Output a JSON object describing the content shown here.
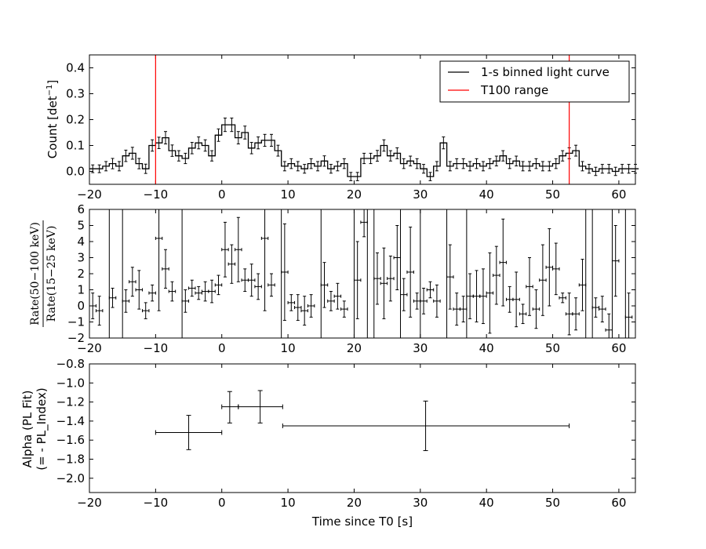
{
  "chart_data": [
    {
      "type": "line",
      "panel": "top",
      "ylabel_main": "Count [det",
      "ylabel_sup": "−1",
      "ylabel_end": "]",
      "xlim": [
        -20,
        62.5
      ],
      "ylim": [
        -0.05,
        0.45
      ],
      "xticks": [
        -20,
        -10,
        0,
        10,
        20,
        30,
        40,
        50,
        60
      ],
      "yticks": [
        0.0,
        0.1,
        0.2,
        0.3,
        0.4
      ],
      "ytick_labels": [
        "0.0",
        "0.1",
        "0.2",
        "0.3",
        "0.4"
      ],
      "legend": {
        "position": "top-right",
        "entries": [
          {
            "label": "1-s binned light curve",
            "color": "#000000"
          },
          {
            "label": "T100 range",
            "color": "#ff0000"
          }
        ]
      },
      "series": [
        {
          "name": "1-s binned light curve",
          "x_start": -20,
          "bin_width": 1,
          "values": [
            0.01,
            0.01,
            0.02,
            0.03,
            0.02,
            0.06,
            0.07,
            0.03,
            0.01,
            0.1,
            0.11,
            0.13,
            0.08,
            0.06,
            0.05,
            0.09,
            0.11,
            0.1,
            0.06,
            0.14,
            0.18,
            0.18,
            0.13,
            0.15,
            0.09,
            0.11,
            0.12,
            0.12,
            0.08,
            0.02,
            0.03,
            0.02,
            0.01,
            0.03,
            0.02,
            0.04,
            0.01,
            0.02,
            0.03,
            -0.02,
            -0.02,
            0.05,
            0.05,
            0.06,
            0.1,
            0.06,
            0.07,
            0.03,
            0.04,
            0.03,
            0.01,
            -0.02,
            0.02,
            0.11,
            0.02,
            0.03,
            0.03,
            0.02,
            0.03,
            0.02,
            0.03,
            0.04,
            0.06,
            0.03,
            0.04,
            0.02,
            0.02,
            0.03,
            0.02,
            0.02,
            0.03,
            0.06,
            0.07,
            0.08,
            0.02,
            0.01,
            0.0,
            0.01,
            0.01,
            0.0,
            0.01,
            0.01,
            0.01
          ],
          "errors": [
            0.015,
            0.015,
            0.018,
            0.02,
            0.018,
            0.022,
            0.023,
            0.02,
            0.018,
            0.022,
            0.022,
            0.024,
            0.022,
            0.02,
            0.02,
            0.022,
            0.023,
            0.022,
            0.02,
            0.024,
            0.026,
            0.026,
            0.024,
            0.025,
            0.022,
            0.023,
            0.023,
            0.023,
            0.021,
            0.018,
            0.019,
            0.018,
            0.017,
            0.019,
            0.018,
            0.02,
            0.017,
            0.018,
            0.019,
            0.016,
            0.016,
            0.02,
            0.02,
            0.021,
            0.022,
            0.02,
            0.021,
            0.019,
            0.019,
            0.019,
            0.017,
            0.016,
            0.018,
            0.023,
            0.018,
            0.019,
            0.019,
            0.018,
            0.019,
            0.018,
            0.019,
            0.019,
            0.02,
            0.019,
            0.019,
            0.018,
            0.018,
            0.019,
            0.018,
            0.018,
            0.019,
            0.02,
            0.021,
            0.021,
            0.018,
            0.017,
            0.016,
            0.017,
            0.017,
            0.016,
            0.017,
            0.017,
            0.017
          ]
        }
      ],
      "t100_lines": [
        -10,
        52.5
      ]
    },
    {
      "type": "scatter",
      "panel": "middle",
      "ylabel": "Rate(50−100 keV) / Rate(15−25 keV)",
      "ylabel_num": "Rate(50−100 keV)",
      "ylabel_den": "Rate(15−25 keV)",
      "xlim": [
        -20,
        62.5
      ],
      "ylim": [
        -2,
        6
      ],
      "xticks": [
        -20,
        -10,
        0,
        10,
        20,
        30,
        40,
        50,
        60
      ],
      "yticks": [
        -2,
        -1,
        0,
        1,
        2,
        3,
        4,
        5,
        6
      ],
      "ytick_labels": [
        "−2",
        "−1",
        "0",
        "1",
        "2",
        "3",
        "4",
        "5",
        "6"
      ],
      "points": [
        [
          -19.5,
          0.0,
          0.8
        ],
        [
          -18.5,
          -0.3,
          0.9
        ],
        [
          -16.5,
          0.5,
          0.6
        ],
        [
          -14.5,
          0.3,
          0.7
        ],
        [
          -13.5,
          1.5,
          0.9
        ],
        [
          -12.5,
          1.0,
          1.2
        ],
        [
          -11.5,
          -0.3,
          0.5
        ],
        [
          -10.5,
          0.8,
          0.5
        ],
        [
          -9.5,
          4.2,
          4.5
        ],
        [
          -8.5,
          2.3,
          1.2
        ],
        [
          -7.5,
          0.9,
          0.6
        ],
        [
          -5.5,
          0.3,
          0.7
        ],
        [
          -4.5,
          1.1,
          0.5
        ],
        [
          -3.5,
          0.8,
          0.4
        ],
        [
          -2.5,
          0.9,
          0.6
        ],
        [
          -1.5,
          0.9,
          0.7
        ],
        [
          -0.5,
          1.3,
          0.6
        ],
        [
          0.5,
          3.5,
          1.7
        ],
        [
          1.5,
          2.6,
          1.2
        ],
        [
          2.5,
          3.5,
          2.0
        ],
        [
          3.5,
          1.6,
          0.7
        ],
        [
          4.5,
          1.6,
          1.0
        ],
        [
          5.5,
          1.2,
          0.8
        ],
        [
          6.5,
          4.2,
          4.5
        ],
        [
          7.5,
          1.3,
          0.7
        ],
        [
          9.5,
          2.1,
          3.0
        ],
        [
          10.5,
          0.2,
          0.5
        ],
        [
          11.5,
          -0.1,
          0.8
        ],
        [
          12.5,
          -0.3,
          0.9
        ],
        [
          13.5,
          0.0,
          0.7
        ],
        [
          15.5,
          1.3,
          1.4
        ],
        [
          16.5,
          0.3,
          0.6
        ],
        [
          17.5,
          0.6,
          0.8
        ],
        [
          18.5,
          -0.2,
          0.5
        ],
        [
          20.5,
          1.6,
          2.4
        ],
        [
          21.5,
          5.2,
          0.9
        ],
        [
          23.5,
          1.7,
          1.6
        ],
        [
          24.5,
          1.4,
          2.2
        ],
        [
          25.5,
          1.7,
          1.4
        ],
        [
          26.5,
          3.0,
          2.0
        ],
        [
          27.5,
          0.7,
          1.0
        ],
        [
          28.5,
          2.1,
          2.8
        ],
        [
          29.5,
          0.3,
          0.5
        ],
        [
          30.5,
          0.3,
          0.8
        ],
        [
          31.5,
          1.0,
          0.5
        ],
        [
          32.5,
          0.3,
          1.0
        ],
        [
          34.5,
          1.8,
          2.0
        ],
        [
          35.5,
          -0.2,
          1.0
        ],
        [
          36.5,
          -0.2,
          0.8
        ],
        [
          37.5,
          0.6,
          1.4
        ],
        [
          38.5,
          0.6,
          1.6
        ],
        [
          39.5,
          0.6,
          1.7
        ],
        [
          40.5,
          0.8,
          2.5
        ],
        [
          41.5,
          1.9,
          1.8
        ],
        [
          42.5,
          2.7,
          2.7
        ],
        [
          43.5,
          0.4,
          0.8
        ],
        [
          44.5,
          0.4,
          1.7
        ],
        [
          45.5,
          -0.5,
          0.6
        ],
        [
          46.5,
          1.2,
          1.8
        ],
        [
          47.5,
          -0.2,
          1.2
        ],
        [
          48.5,
          1.6,
          2.2
        ],
        [
          49.5,
          2.4,
          2.4
        ],
        [
          50.5,
          2.3,
          1.6
        ],
        [
          51.5,
          0.5,
          0.3
        ],
        [
          52.5,
          -0.5,
          1.3
        ],
        [
          53.5,
          -0.5,
          1.0
        ],
        [
          54.5,
          1.3,
          1.6
        ],
        [
          56.5,
          -0.1,
          0.6
        ],
        [
          57.5,
          -0.2,
          0.8
        ],
        [
          58.5,
          -1.5,
          1.0
        ],
        [
          59.5,
          2.8,
          2.2
        ],
        [
          61.5,
          -0.7,
          1.5
        ]
      ],
      "full_lines": [
        -17,
        -15,
        -6,
        9,
        15,
        20,
        22,
        23,
        27,
        30,
        34,
        37,
        55,
        56,
        59,
        61
      ]
    },
    {
      "type": "scatter",
      "panel": "bottom",
      "ylabel_line1": "Alpha (PL Fit)",
      "ylabel_line2": "(= - PL_Index)",
      "xlabel": "Time since T0 [s]",
      "xlim": [
        -20,
        62.5
      ],
      "ylim": [
        -2.15,
        -0.8
      ],
      "xticks": [
        -20,
        -10,
        0,
        10,
        20,
        30,
        40,
        50,
        60
      ],
      "yticks": [
        -2.0,
        -1.8,
        -1.6,
        -1.4,
        -1.2,
        -1.0,
        -0.8
      ],
      "ytick_labels": [
        "−2.0",
        "−1.8",
        "−1.6",
        "−1.4",
        "−1.2",
        "−1.0",
        "−0.8"
      ],
      "points": [
        {
          "x": -5,
          "xlo": -10,
          "xhi": 0,
          "y": -1.52,
          "ylo": -1.7,
          "yhi": -1.34
        },
        {
          "x": 1.2,
          "xlo": 0,
          "xhi": 2.5,
          "y": -1.25,
          "ylo": -1.42,
          "yhi": -1.09
        },
        {
          "x": 5.8,
          "xlo": 2.5,
          "xhi": 9.2,
          "y": -1.25,
          "ylo": -1.42,
          "yhi": -1.08
        },
        {
          "x": 30.8,
          "xlo": 9.2,
          "xhi": 52.5,
          "y": -1.45,
          "ylo": -1.71,
          "yhi": -1.19
        }
      ]
    }
  ]
}
